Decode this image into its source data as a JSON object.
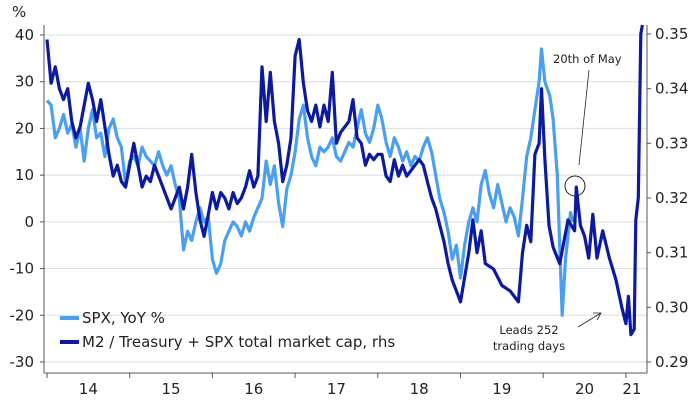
{
  "chart_data": {
    "type": "line",
    "title": "",
    "ylabel": "%",
    "ylabel_right": "",
    "ylim": [
      -30,
      40
    ],
    "ylim_right": [
      0.29,
      0.35
    ],
    "yticks": [
      "40",
      "30",
      "20",
      "10",
      "0",
      "-10",
      "-20",
      "-30"
    ],
    "yticks_values": [
      40,
      30,
      20,
      10,
      0,
      -10,
      -20,
      -30
    ],
    "yticks_right": [
      "0.35",
      "0.34",
      "0.33",
      "0.32",
      "0.31",
      "0.30",
      "0.29"
    ],
    "yticks_right_values": [
      0.35,
      0.34,
      0.33,
      0.32,
      0.31,
      0.3,
      0.29
    ],
    "xlim": [
      2014,
      2021.25
    ],
    "xtick_labels": [
      "14",
      "15",
      "16",
      "17",
      "18",
      "19",
      "20",
      "21"
    ],
    "grid": true,
    "legend_position": "bottom-left",
    "colors": {
      "spx": "#4a9ff0",
      "m2": "#0d1a9e",
      "grid": "#d8dde4",
      "axis": "#555"
    },
    "series": [
      {
        "name": "SPX, YoY %",
        "axis": "left",
        "x": [
          2014.0,
          2014.05,
          2014.1,
          2014.15,
          2014.2,
          2014.25,
          2014.3,
          2014.35,
          2014.4,
          2014.45,
          2014.5,
          2014.55,
          2014.6,
          2014.65,
          2014.7,
          2014.75,
          2014.8,
          2014.85,
          2014.9,
          2014.95,
          2015.0,
          2015.05,
          2015.1,
          2015.15,
          2015.2,
          2015.25,
          2015.3,
          2015.35,
          2015.4,
          2015.45,
          2015.5,
          2015.55,
          2015.6,
          2015.65,
          2015.7,
          2015.75,
          2015.8,
          2015.85,
          2015.9,
          2015.95,
          2016.0,
          2016.05,
          2016.1,
          2016.15,
          2016.2,
          2016.25,
          2016.3,
          2016.35,
          2016.4,
          2016.45,
          2016.5,
          2016.55,
          2016.6,
          2016.65,
          2016.7,
          2016.75,
          2016.8,
          2016.85,
          2016.9,
          2016.95,
          2017.0,
          2017.05,
          2017.1,
          2017.15,
          2017.2,
          2017.25,
          2017.3,
          2017.35,
          2017.4,
          2017.45,
          2017.5,
          2017.55,
          2017.6,
          2017.65,
          2017.7,
          2017.75,
          2017.8,
          2017.85,
          2017.9,
          2017.95,
          2018.0,
          2018.05,
          2018.1,
          2018.15,
          2018.2,
          2018.25,
          2018.3,
          2018.35,
          2018.4,
          2018.45,
          2018.5,
          2018.55,
          2018.6,
          2018.65,
          2018.7,
          2018.75,
          2018.8,
          2018.85,
          2018.9,
          2018.95,
          2019.0,
          2019.05,
          2019.1,
          2019.15,
          2019.2,
          2019.25,
          2019.3,
          2019.35,
          2019.4,
          2019.45,
          2019.5,
          2019.55,
          2019.6,
          2019.65,
          2019.7,
          2019.75,
          2019.8,
          2019.85,
          2019.9,
          2019.95,
          2019.98,
          2020.02,
          2020.08,
          2020.12,
          2020.17,
          2020.2,
          2020.23,
          2020.27,
          2020.3,
          2020.33,
          2020.36
        ],
        "y": [
          26,
          25,
          18,
          20,
          23,
          19,
          21,
          16,
          20,
          13,
          20,
          24,
          18,
          19,
          14,
          20,
          22,
          18,
          16,
          8,
          13,
          14,
          12,
          16,
          14,
          13,
          12,
          15,
          12,
          10,
          12,
          8,
          5,
          -6,
          -2,
          -4,
          0,
          3,
          0,
          1,
          -8,
          -11,
          -9,
          -4,
          -2,
          0,
          -1,
          -3,
          0,
          -2,
          1,
          3,
          5,
          13,
          8,
          12,
          4,
          -1,
          7,
          10,
          15,
          22,
          25,
          18,
          14,
          12,
          16,
          15,
          16,
          18,
          14,
          13,
          15,
          17,
          16,
          20,
          24,
          19,
          17,
          20,
          25,
          22,
          17,
          14,
          18,
          16,
          13,
          15,
          12,
          14,
          13,
          16,
          18,
          15,
          10,
          5,
          2,
          -2,
          -8,
          -5,
          -12,
          -5,
          0,
          3,
          0,
          8,
          11,
          6,
          3,
          8,
          4,
          0,
          3,
          1,
          -3,
          5,
          14,
          18,
          24,
          30,
          37,
          30,
          27,
          22,
          10,
          -5,
          -20,
          -8,
          -3,
          2,
          0
        ]
      },
      {
        "name": "M2 / Treasury + SPX total market cap, rhs",
        "axis": "right",
        "x": [
          2014.0,
          2014.05,
          2014.1,
          2014.15,
          2014.2,
          2014.25,
          2014.3,
          2014.35,
          2014.4,
          2014.45,
          2014.5,
          2014.55,
          2014.6,
          2014.65,
          2014.7,
          2014.75,
          2014.8,
          2014.85,
          2014.9,
          2014.95,
          2015.0,
          2015.05,
          2015.1,
          2015.15,
          2015.2,
          2015.25,
          2015.3,
          2015.35,
          2015.4,
          2015.45,
          2015.5,
          2015.55,
          2015.6,
          2015.65,
          2015.7,
          2015.75,
          2015.8,
          2015.85,
          2015.9,
          2015.95,
          2016.0,
          2016.05,
          2016.1,
          2016.15,
          2016.2,
          2016.25,
          2016.3,
          2016.35,
          2016.4,
          2016.45,
          2016.5,
          2016.55,
          2016.6,
          2016.65,
          2016.7,
          2016.75,
          2016.8,
          2016.85,
          2016.9,
          2016.95,
          2017.0,
          2017.05,
          2017.1,
          2017.15,
          2017.2,
          2017.25,
          2017.3,
          2017.35,
          2017.4,
          2017.45,
          2017.5,
          2017.55,
          2017.6,
          2017.65,
          2017.7,
          2017.75,
          2017.8,
          2017.85,
          2017.9,
          2017.95,
          2018.0,
          2018.05,
          2018.1,
          2018.15,
          2018.2,
          2018.25,
          2018.3,
          2018.35,
          2018.4,
          2018.45,
          2018.5,
          2018.55,
          2018.6,
          2018.65,
          2018.7,
          2018.75,
          2018.8,
          2018.85,
          2018.9,
          2018.95,
          2019.0,
          2019.1,
          2019.15,
          2019.2,
          2019.25,
          2019.3,
          2019.4,
          2019.5,
          2019.6,
          2019.7,
          2019.75,
          2019.8,
          2019.85,
          2019.9,
          2019.95,
          2019.98,
          2020.02,
          2020.07,
          2020.12,
          2020.2,
          2020.25,
          2020.3,
          2020.38,
          2020.4,
          2020.45,
          2020.5,
          2020.55,
          2020.6,
          2020.65,
          2020.72,
          2020.8,
          2020.88,
          2020.95,
          2021.0,
          2021.03,
          2021.06,
          2021.1,
          2021.12,
          2021.15,
          2021.18,
          2021.2
        ],
        "y": [
          0.349,
          0.341,
          0.344,
          0.34,
          0.338,
          0.34,
          0.334,
          0.331,
          0.333,
          0.337,
          0.341,
          0.338,
          0.334,
          0.338,
          0.333,
          0.328,
          0.324,
          0.326,
          0.323,
          0.322,
          0.326,
          0.33,
          0.326,
          0.322,
          0.324,
          0.323,
          0.326,
          0.324,
          0.322,
          0.32,
          0.318,
          0.32,
          0.322,
          0.318,
          0.322,
          0.328,
          0.321,
          0.316,
          0.313,
          0.317,
          0.321,
          0.318,
          0.321,
          0.32,
          0.318,
          0.321,
          0.319,
          0.32,
          0.322,
          0.325,
          0.322,
          0.324,
          0.344,
          0.334,
          0.343,
          0.334,
          0.33,
          0.323,
          0.326,
          0.331,
          0.346,
          0.349,
          0.341,
          0.336,
          0.334,
          0.337,
          0.333,
          0.337,
          0.334,
          0.343,
          0.33,
          0.332,
          0.333,
          0.334,
          0.338,
          0.331,
          0.33,
          0.326,
          0.328,
          0.327,
          0.328,
          0.328,
          0.324,
          0.323,
          0.327,
          0.324,
          0.326,
          0.324,
          0.325,
          0.326,
          0.327,
          0.326,
          0.323,
          0.32,
          0.318,
          0.315,
          0.312,
          0.308,
          0.305,
          0.303,
          0.301,
          0.31,
          0.316,
          0.31,
          0.314,
          0.308,
          0.307,
          0.304,
          0.303,
          0.301,
          0.31,
          0.315,
          0.312,
          0.328,
          0.33,
          0.34,
          0.327,
          0.315,
          0.311,
          0.308,
          0.312,
          0.316,
          0.314,
          0.322,
          0.315,
          0.313,
          0.309,
          0.317,
          0.309,
          0.314,
          0.309,
          0.305,
          0.3,
          0.297,
          0.302,
          0.295,
          0.296,
          0.316,
          0.32,
          0.35,
          0.352
        ]
      }
    ],
    "annotations": {
      "may": "20th of May",
      "leads_line1": "Leads 252",
      "leads_line2": "trading days"
    }
  }
}
